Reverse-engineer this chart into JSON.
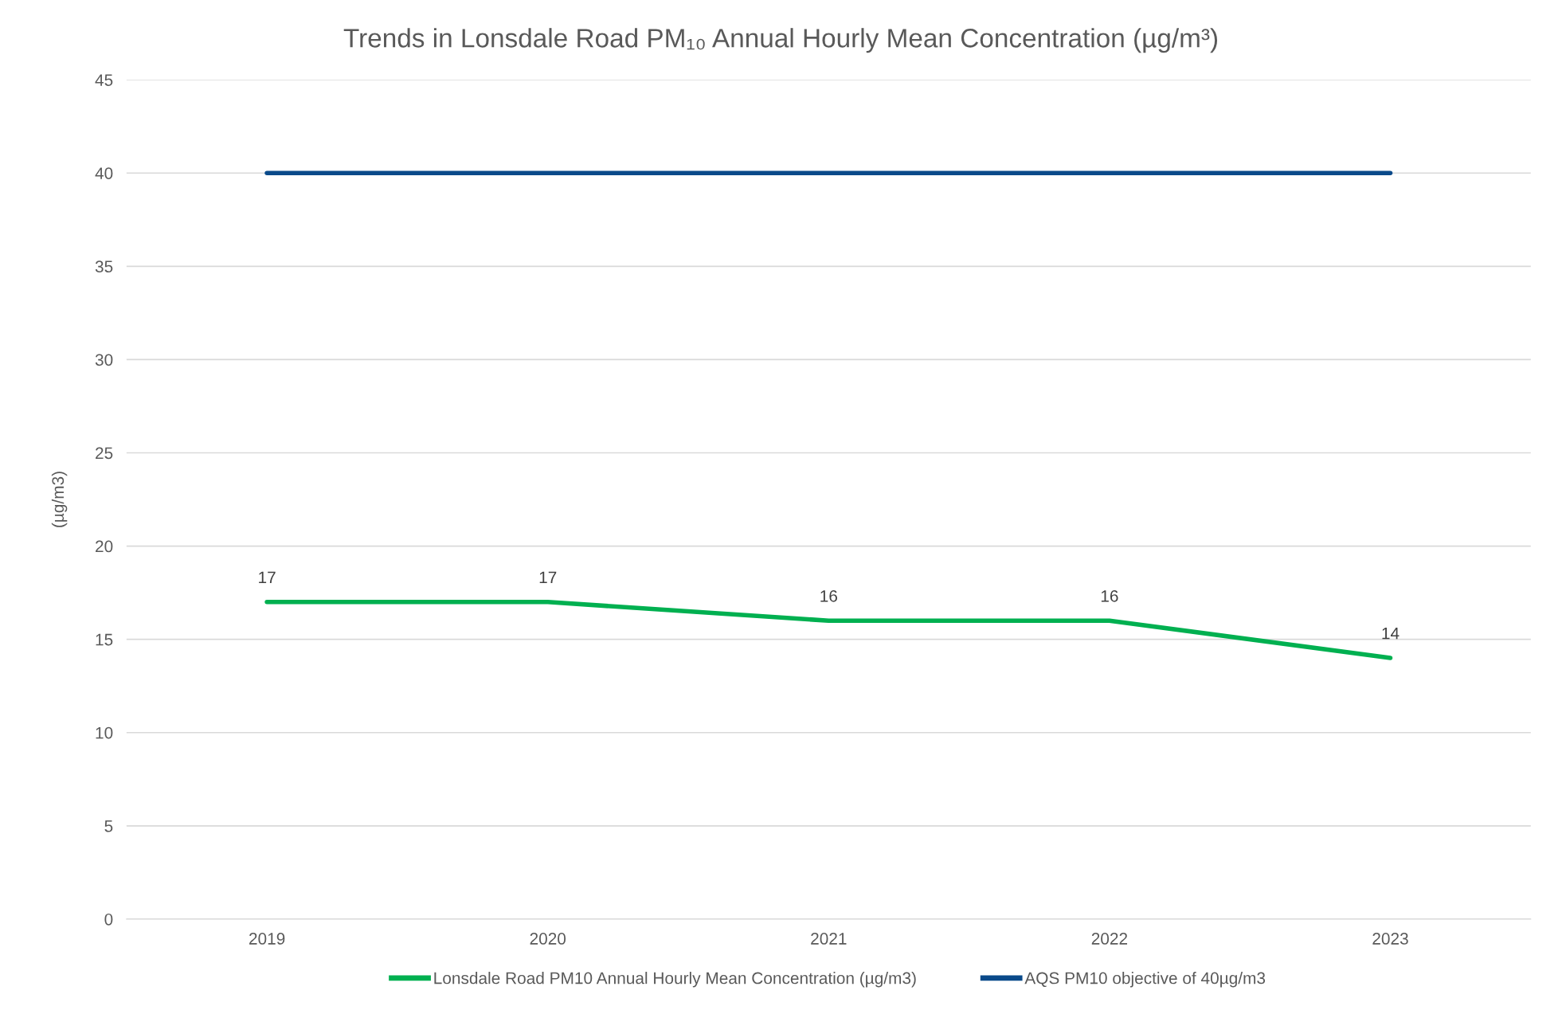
{
  "chart_data": {
    "type": "line",
    "title": "Trends in Lonsdale Road PM₁₀ Annual Hourly Mean Concentration (µg/m³)",
    "ylabel": "(µg/m3)",
    "categories": [
      "2019",
      "2020",
      "2021",
      "2022",
      "2023"
    ],
    "series": [
      {
        "name": "Lonsdale Road PM10 Annual Hourly Mean Concentration (µg/m3)",
        "color": "#00b050",
        "values": [
          17,
          17,
          16,
          16,
          14
        ],
        "value_labels": [
          "17",
          "17",
          "16",
          "16",
          "14"
        ]
      },
      {
        "name": "AQS PM10 objective of 40µg/m3",
        "color": "#0a4a8a",
        "values": [
          40,
          40,
          40,
          40,
          40
        ]
      }
    ],
    "ylim": [
      0,
      45
    ],
    "yticks": [
      0,
      5,
      10,
      15,
      20,
      25,
      30,
      35,
      40,
      45
    ],
    "grid": "y",
    "legend": "bottom",
    "marker": "none",
    "line_style": "solid"
  }
}
